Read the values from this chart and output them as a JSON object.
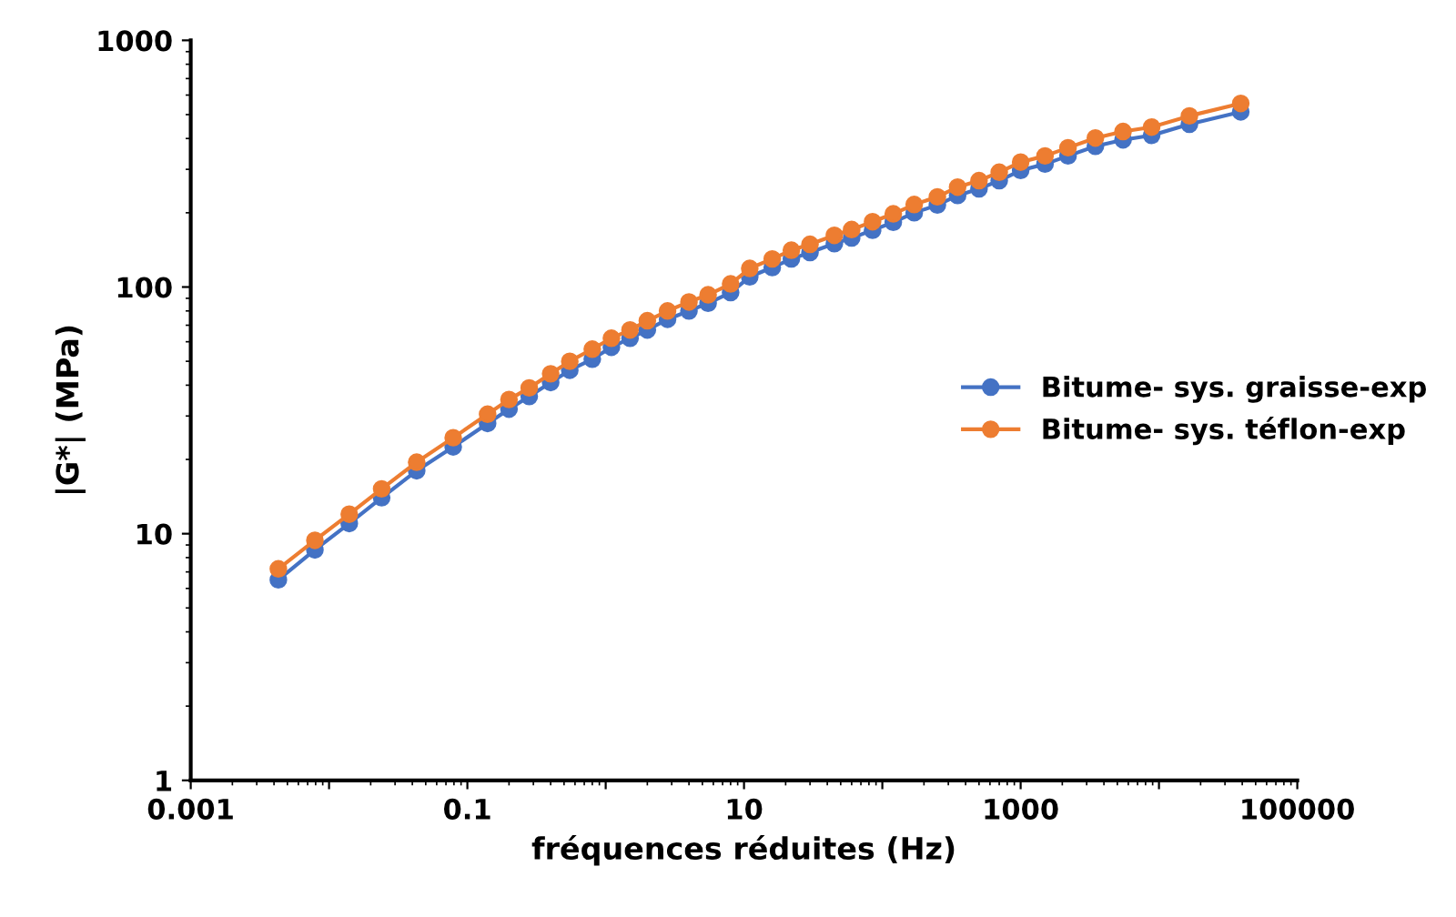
{
  "chart_data": {
    "type": "line",
    "xlabel": "fréquences réduites (Hz)",
    "ylabel": "|G*| (MPa)",
    "log": "xy",
    "xlim": [
      0.001,
      100000
    ],
    "ylim": [
      1,
      1000
    ],
    "xticks": [
      0.001,
      {
        "value": 0.01,
        "label": null
      },
      0.1,
      {
        "value": 1,
        "label": null
      },
      10,
      {
        "value": 100,
        "label": null
      },
      1000,
      {
        "value": 10000,
        "label": null
      },
      100000
    ],
    "yticks": [
      1,
      10,
      100,
      1000
    ],
    "marker": "circle",
    "line_style": "solid",
    "grid": false,
    "legend": "right",
    "x": [
      0.0043,
      0.0079,
      0.014,
      0.024,
      0.043,
      0.079,
      0.14,
      0.2,
      0.28,
      0.4,
      0.55,
      0.8,
      1.1,
      1.5,
      2,
      2.8,
      4,
      5.5,
      8,
      11,
      16,
      22,
      30,
      45,
      60,
      85,
      120,
      170,
      250,
      350,
      500,
      700,
      1000,
      1500,
      2200,
      3470,
      5500,
      8850,
      16600,
      39000
    ],
    "series": [
      {
        "name": "Bitume- sys. graisse-exp",
        "color": "#4472c4",
        "values": [
          6.5,
          8.6,
          11,
          14,
          18,
          22.5,
          28,
          32,
          36,
          41,
          46,
          51,
          57,
          62,
          67,
          74,
          80,
          86,
          95,
          110,
          120,
          130,
          138,
          150,
          158,
          170,
          183,
          200,
          215,
          235,
          250,
          270,
          297,
          315,
          340,
          372,
          395,
          412,
          457,
          513
        ]
      },
      {
        "name": "Bitume- sys. téflon-exp",
        "color": "#ed7d31",
        "values": [
          7.2,
          9.4,
          12,
          15.2,
          19.5,
          24.5,
          30.5,
          35,
          39,
          44.5,
          50,
          56,
          62,
          67,
          73,
          80,
          87,
          93,
          103,
          119,
          130,
          141,
          149,
          162,
          171,
          184,
          198,
          216,
          232,
          254,
          270,
          292,
          321,
          340,
          367,
          402,
          427,
          445,
          494,
          555
        ]
      }
    ]
  }
}
